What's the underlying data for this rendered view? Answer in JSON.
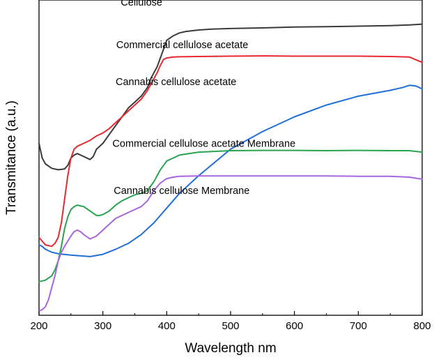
{
  "chart_data": {
    "type": "line",
    "title": "",
    "xlabel": "Wavelength nm",
    "ylabel": "Transmitance (a.u.)",
    "xlim": [
      200,
      800
    ],
    "ylim": [
      0,
      100
    ],
    "xticks": [
      200,
      300,
      400,
      500,
      600,
      700,
      800
    ],
    "yticks_shown": false,
    "grid": false,
    "legend": "inline labels",
    "series": [
      {
        "name": "Cellulose",
        "color": "#3a3a3a",
        "x": [
          200,
          205,
          210,
          220,
          230,
          240,
          245,
          250,
          255,
          260,
          270,
          280,
          285,
          290,
          300,
          310,
          320,
          330,
          340,
          350,
          360,
          370,
          375,
          380,
          385,
          390,
          395,
          400,
          410,
          420,
          430,
          450,
          470,
          500,
          550,
          600,
          650,
          700,
          750,
          780,
          800
        ],
        "values": [
          57,
          52,
          50,
          48.5,
          48,
          48.3,
          49.5,
          52,
          53,
          53.5,
          52.5,
          51.5,
          52.5,
          55,
          57,
          60,
          63,
          66,
          69,
          71,
          73,
          76,
          79,
          81,
          83,
          86,
          89,
          92,
          93.5,
          94.5,
          95,
          95.5,
          95.8,
          96,
          96.2,
          96.5,
          96.6,
          96.8,
          97,
          97.2,
          97.5
        ]
      },
      {
        "name": "Commercial cellulose acetate",
        "color": "#e8282f",
        "x": [
          200,
          210,
          220,
          225,
          230,
          235,
          240,
          245,
          250,
          255,
          260,
          270,
          280,
          290,
          300,
          310,
          320,
          330,
          340,
          350,
          360,
          370,
          380,
          385,
          390,
          395,
          400,
          410,
          420,
          450,
          500,
          550,
          600,
          650,
          700,
          750,
          780,
          800
        ],
        "values": [
          25,
          22.5,
          22,
          23,
          25,
          30,
          38,
          46,
          52,
          55,
          56,
          57,
          58,
          59.5,
          60.5,
          62,
          64,
          66,
          68,
          70,
          72,
          75,
          79,
          81,
          83.5,
          85.5,
          86,
          86.3,
          86.4,
          86.5,
          86.6,
          86.7,
          86.6,
          86.6,
          86.6,
          86.5,
          86.3,
          84.5
        ]
      },
      {
        "name": "Cannabis cellulose acetate",
        "color": "#1f6fd8",
        "x": [
          200,
          205,
          210,
          220,
          230,
          250,
          280,
          300,
          320,
          340,
          360,
          380,
          400,
          420,
          450,
          500,
          550,
          600,
          650,
          700,
          750,
          770,
          780,
          790,
          800
        ],
        "values": [
          22.5,
          22,
          21,
          20,
          19.5,
          19,
          18.5,
          19.3,
          21,
          23,
          26,
          30,
          35,
          40,
          46,
          55,
          61,
          66,
          70,
          73,
          75,
          76,
          76.7,
          76.5,
          75.5
        ]
      },
      {
        "name": "Commercial cellulose acetate Membrane",
        "color": "#2aa34f",
        "x": [
          200,
          210,
          220,
          225,
          230,
          235,
          240,
          245,
          250,
          255,
          260,
          270,
          280,
          290,
          295,
          300,
          310,
          320,
          330,
          340,
          350,
          360,
          370,
          380,
          390,
          400,
          410,
          420,
          450,
          500,
          550,
          600,
          650,
          700,
          750,
          780,
          800
        ],
        "values": [
          10,
          10.5,
          12,
          14,
          17,
          22,
          28,
          32,
          34.5,
          35.5,
          36,
          35.5,
          34,
          32.5,
          32.5,
          32.8,
          34,
          36,
          37.5,
          38.5,
          39.5,
          40,
          41,
          44,
          48,
          51,
          52,
          53,
          54,
          54.5,
          54.6,
          54.6,
          54.5,
          54.6,
          54.5,
          54.5,
          54
        ]
      },
      {
        "name": "Cannabis cellulose Membrane",
        "color": "#a765e0",
        "x": [
          200,
          205,
          210,
          215,
          220,
          225,
          230,
          235,
          240,
          250,
          255,
          260,
          265,
          270,
          280,
          290,
          300,
          310,
          320,
          330,
          340,
          350,
          360,
          370,
          380,
          390,
          400,
          410,
          420,
          450,
          500,
          550,
          600,
          650,
          700,
          750,
          780,
          800
        ],
        "values": [
          0,
          0.5,
          1.5,
          4,
          8,
          12,
          17,
          20,
          22,
          25.5,
          27,
          27.5,
          27,
          26,
          24.5,
          25.5,
          27.5,
          29.5,
          31.5,
          32.5,
          33.5,
          34.5,
          35.5,
          37.5,
          41,
          43.5,
          45,
          45.5,
          45.8,
          45.9,
          45.9,
          45.9,
          45.9,
          45.9,
          45.8,
          45.8,
          45.5,
          44.8
        ]
      }
    ],
    "annotations": [
      {
        "text": "Cellulose",
        "x": 328,
        "y": 105
      },
      {
        "text": "Commercial cellulose acetate",
        "x": 321,
        "y": 90.5
      },
      {
        "text": "Cannabis cellulose acetate",
        "x": 320,
        "y": 78
      },
      {
        "text": "Commercial cellulose acetate Membrane",
        "x": 315,
        "y": 57
      },
      {
        "text": "Cannabis cellulose Membrane",
        "x": 317,
        "y": 41
      }
    ]
  }
}
